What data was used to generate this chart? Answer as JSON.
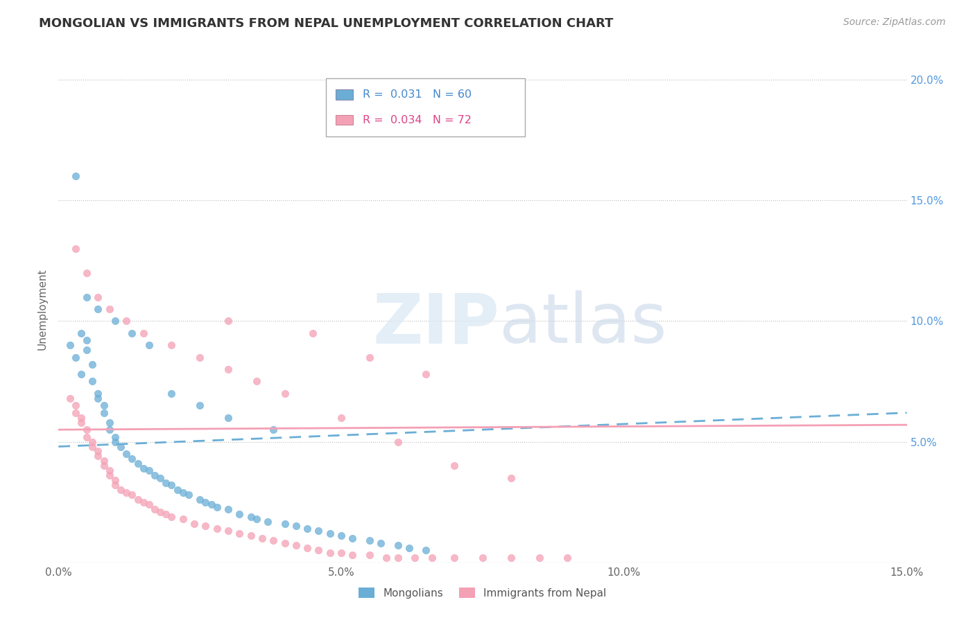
{
  "title": "MONGOLIAN VS IMMIGRANTS FROM NEPAL UNEMPLOYMENT CORRELATION CHART",
  "source": "Source: ZipAtlas.com",
  "ylabel_label": "Unemployment",
  "xlim": [
    0.0,
    0.15
  ],
  "ylim": [
    0.0,
    0.21
  ],
  "xticks": [
    0.0,
    0.05,
    0.1,
    0.15
  ],
  "xtick_labels": [
    "0.0%",
    "5.0%",
    "10.0%",
    "15.0%"
  ],
  "yticks_right": [
    0.05,
    0.1,
    0.15,
    0.2
  ],
  "ytick_labels_right": [
    "5.0%",
    "10.0%",
    "15.0%",
    "20.0%"
  ],
  "mongolian_color": "#6aaed6",
  "nepal_color": "#f4a0b5",
  "mongolian_R": 0.031,
  "mongolian_N": 60,
  "nepal_R": 0.034,
  "nepal_N": 72,
  "watermark_zip": "ZIP",
  "watermark_atlas": "atlas",
  "mon_trend_x0": 0.0,
  "mon_trend_y0": 0.048,
  "mon_trend_x1": 0.15,
  "mon_trend_y1": 0.062,
  "nep_trend_x0": 0.0,
  "nep_trend_y0": 0.055,
  "nep_trend_x1": 0.15,
  "nep_trend_y1": 0.057,
  "mongolian_x": [
    0.002,
    0.003,
    0.004,
    0.004,
    0.005,
    0.005,
    0.006,
    0.006,
    0.007,
    0.007,
    0.008,
    0.008,
    0.009,
    0.009,
    0.01,
    0.01,
    0.011,
    0.012,
    0.013,
    0.014,
    0.015,
    0.016,
    0.017,
    0.018,
    0.019,
    0.02,
    0.021,
    0.022,
    0.023,
    0.025,
    0.026,
    0.027,
    0.028,
    0.03,
    0.032,
    0.034,
    0.035,
    0.037,
    0.04,
    0.042,
    0.044,
    0.046,
    0.048,
    0.05,
    0.052,
    0.055,
    0.057,
    0.06,
    0.062,
    0.065,
    0.003,
    0.005,
    0.007,
    0.01,
    0.013,
    0.016,
    0.02,
    0.025,
    0.03,
    0.038
  ],
  "mongolian_y": [
    0.09,
    0.085,
    0.095,
    0.078,
    0.092,
    0.088,
    0.082,
    0.075,
    0.07,
    0.068,
    0.065,
    0.062,
    0.058,
    0.055,
    0.052,
    0.05,
    0.048,
    0.045,
    0.043,
    0.041,
    0.039,
    0.038,
    0.036,
    0.035,
    0.033,
    0.032,
    0.03,
    0.029,
    0.028,
    0.026,
    0.025,
    0.024,
    0.023,
    0.022,
    0.02,
    0.019,
    0.018,
    0.017,
    0.016,
    0.015,
    0.014,
    0.013,
    0.012,
    0.011,
    0.01,
    0.009,
    0.008,
    0.007,
    0.006,
    0.005,
    0.16,
    0.11,
    0.105,
    0.1,
    0.095,
    0.09,
    0.07,
    0.065,
    0.06,
    0.055
  ],
  "nepal_x": [
    0.002,
    0.003,
    0.003,
    0.004,
    0.004,
    0.005,
    0.005,
    0.006,
    0.006,
    0.007,
    0.007,
    0.008,
    0.008,
    0.009,
    0.009,
    0.01,
    0.01,
    0.011,
    0.012,
    0.013,
    0.014,
    0.015,
    0.016,
    0.017,
    0.018,
    0.019,
    0.02,
    0.022,
    0.024,
    0.026,
    0.028,
    0.03,
    0.032,
    0.034,
    0.036,
    0.038,
    0.04,
    0.042,
    0.044,
    0.046,
    0.048,
    0.05,
    0.052,
    0.055,
    0.058,
    0.06,
    0.063,
    0.066,
    0.07,
    0.075,
    0.08,
    0.085,
    0.09,
    0.003,
    0.005,
    0.007,
    0.009,
    0.012,
    0.015,
    0.02,
    0.025,
    0.03,
    0.035,
    0.04,
    0.05,
    0.06,
    0.07,
    0.08,
    0.03,
    0.045,
    0.055,
    0.065
  ],
  "nepal_y": [
    0.068,
    0.065,
    0.062,
    0.06,
    0.058,
    0.055,
    0.052,
    0.05,
    0.048,
    0.046,
    0.044,
    0.042,
    0.04,
    0.038,
    0.036,
    0.034,
    0.032,
    0.03,
    0.029,
    0.028,
    0.026,
    0.025,
    0.024,
    0.022,
    0.021,
    0.02,
    0.019,
    0.018,
    0.016,
    0.015,
    0.014,
    0.013,
    0.012,
    0.011,
    0.01,
    0.009,
    0.008,
    0.007,
    0.006,
    0.005,
    0.004,
    0.004,
    0.003,
    0.003,
    0.002,
    0.002,
    0.002,
    0.002,
    0.002,
    0.002,
    0.002,
    0.002,
    0.002,
    0.13,
    0.12,
    0.11,
    0.105,
    0.1,
    0.095,
    0.09,
    0.085,
    0.08,
    0.075,
    0.07,
    0.06,
    0.05,
    0.04,
    0.035,
    0.1,
    0.095,
    0.085,
    0.078
  ]
}
